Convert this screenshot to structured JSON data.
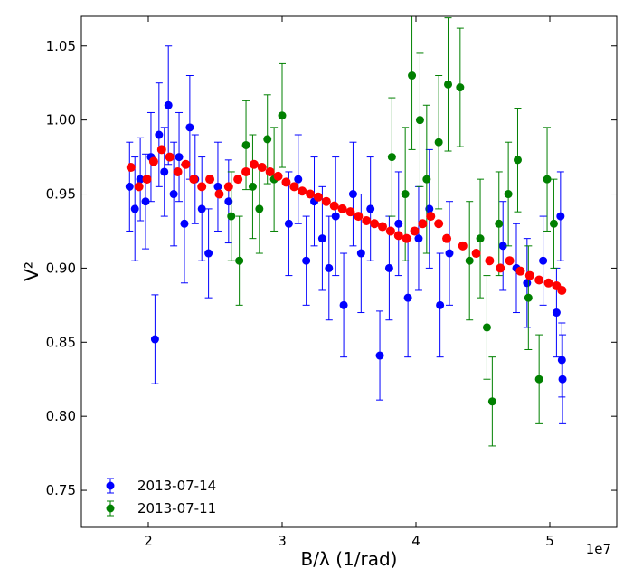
{
  "chart_data": {
    "type": "scatter",
    "title": "",
    "xlabel": "B/λ (1/rad)",
    "ylabel": "V²",
    "x_scale_note": "1e7",
    "xlim": [
      15000000,
      55000000
    ],
    "ylim": [
      0.725,
      1.07
    ],
    "x_ticks": [
      20000000,
      30000000,
      40000000,
      50000000
    ],
    "x_tick_labels": [
      "2",
      "3",
      "4",
      "5"
    ],
    "y_ticks": [
      0.75,
      0.8,
      0.85,
      0.9,
      0.95,
      1.0,
      1.05
    ],
    "y_tick_labels": [
      "0.75",
      "0.80",
      "0.85",
      "0.90",
      "0.95",
      "1.00",
      "1.05"
    ],
    "legend_position": "lower-left",
    "colors": {
      "blue": "#0000ff",
      "green": "#008000",
      "red": "#ff0000"
    },
    "series": [
      {
        "name": "2013-07-14",
        "color": "#0000ff",
        "points": [
          [
            18600000,
            0.955,
            0.03
          ],
          [
            19000000,
            0.94,
            0.035
          ],
          [
            19400000,
            0.96,
            0.028
          ],
          [
            19800000,
            0.945,
            0.032
          ],
          [
            20200000,
            0.975,
            0.03
          ],
          [
            20500000,
            0.852,
            0.03
          ],
          [
            20800000,
            0.99,
            0.035
          ],
          [
            21200000,
            0.965,
            0.03
          ],
          [
            21500000,
            1.01,
            0.04
          ],
          [
            21900000,
            0.95,
            0.035
          ],
          [
            22300000,
            0.975,
            0.03
          ],
          [
            22700000,
            0.93,
            0.04
          ],
          [
            23100000,
            0.995,
            0.035
          ],
          [
            23500000,
            0.96,
            0.03
          ],
          [
            24000000,
            0.94,
            0.035
          ],
          [
            24500000,
            0.91,
            0.03
          ],
          [
            25200000,
            0.955,
            0.03
          ],
          [
            26000000,
            0.945,
            0.028
          ],
          [
            30500000,
            0.93,
            0.035
          ],
          [
            31200000,
            0.96,
            0.03
          ],
          [
            31800000,
            0.905,
            0.03
          ],
          [
            32400000,
            0.945,
            0.03
          ],
          [
            33000000,
            0.92,
            0.035
          ],
          [
            33500000,
            0.9,
            0.035
          ],
          [
            34000000,
            0.935,
            0.04
          ],
          [
            34600000,
            0.875,
            0.035
          ],
          [
            35300000,
            0.95,
            0.035
          ],
          [
            35900000,
            0.91,
            0.04
          ],
          [
            36600000,
            0.94,
            0.035
          ],
          [
            37300000,
            0.841,
            0.03
          ],
          [
            38000000,
            0.9,
            0.035
          ],
          [
            38700000,
            0.93,
            0.035
          ],
          [
            39400000,
            0.88,
            0.04
          ],
          [
            40200000,
            0.92,
            0.035
          ],
          [
            41000000,
            0.94,
            0.04
          ],
          [
            41800000,
            0.875,
            0.035
          ],
          [
            42500000,
            0.91,
            0.035
          ],
          [
            46500000,
            0.915,
            0.03
          ],
          [
            47500000,
            0.9,
            0.03
          ],
          [
            48300000,
            0.89,
            0.03
          ],
          [
            49500000,
            0.905,
            0.03
          ],
          [
            50500000,
            0.87,
            0.03
          ],
          [
            50800000,
            0.935,
            0.03
          ],
          [
            50900000,
            0.838,
            0.025
          ],
          [
            50950000,
            0.825,
            0.03
          ]
        ]
      },
      {
        "name": "2013-07-11",
        "color": "#008000",
        "points": [
          [
            26200000,
            0.935,
            0.03
          ],
          [
            26800000,
            0.905,
            0.03
          ],
          [
            27300000,
            0.983,
            0.03
          ],
          [
            27800000,
            0.955,
            0.035
          ],
          [
            28300000,
            0.94,
            0.03
          ],
          [
            28900000,
            0.987,
            0.03
          ],
          [
            29400000,
            0.96,
            0.035
          ],
          [
            30000000,
            1.003,
            0.035
          ],
          [
            38200000,
            0.975,
            0.04
          ],
          [
            39200000,
            0.95,
            0.045
          ],
          [
            39700000,
            1.03,
            0.05
          ],
          [
            40300000,
            1.0,
            0.045
          ],
          [
            40800000,
            0.96,
            0.05
          ],
          [
            41700000,
            0.985,
            0.045
          ],
          [
            42400000,
            1.024,
            0.045
          ],
          [
            43300000,
            1.022,
            0.04
          ],
          [
            44000000,
            0.905,
            0.04
          ],
          [
            44800000,
            0.92,
            0.04
          ],
          [
            45300000,
            0.86,
            0.035
          ],
          [
            45700000,
            0.81,
            0.03
          ],
          [
            46200000,
            0.93,
            0.035
          ],
          [
            46900000,
            0.95,
            0.035
          ],
          [
            47600000,
            0.973,
            0.035
          ],
          [
            48400000,
            0.88,
            0.035
          ],
          [
            49200000,
            0.825,
            0.03
          ],
          [
            49800000,
            0.96,
            0.035
          ],
          [
            50300000,
            0.93,
            0.03
          ]
        ]
      },
      {
        "name": "",
        "color": "#ff0000",
        "points": [
          [
            18700000,
            0.968
          ],
          [
            19300000,
            0.955
          ],
          [
            19900000,
            0.96
          ],
          [
            20400000,
            0.972
          ],
          [
            21000000,
            0.98
          ],
          [
            21600000,
            0.975
          ],
          [
            22200000,
            0.965
          ],
          [
            22800000,
            0.97
          ],
          [
            23400000,
            0.96
          ],
          [
            24000000,
            0.955
          ],
          [
            24600000,
            0.96
          ],
          [
            25300000,
            0.95
          ],
          [
            26000000,
            0.955
          ],
          [
            26700000,
            0.96
          ],
          [
            27300000,
            0.965
          ],
          [
            27900000,
            0.97
          ],
          [
            28500000,
            0.968
          ],
          [
            29100000,
            0.965
          ],
          [
            29700000,
            0.962
          ],
          [
            30300000,
            0.958
          ],
          [
            30900000,
            0.955
          ],
          [
            31500000,
            0.952
          ],
          [
            32100000,
            0.95
          ],
          [
            32700000,
            0.948
          ],
          [
            33300000,
            0.945
          ],
          [
            33900000,
            0.942
          ],
          [
            34500000,
            0.94
          ],
          [
            35100000,
            0.938
          ],
          [
            35700000,
            0.935
          ],
          [
            36300000,
            0.932
          ],
          [
            36900000,
            0.93
          ],
          [
            37500000,
            0.928
          ],
          [
            38100000,
            0.925
          ],
          [
            38700000,
            0.922
          ],
          [
            39300000,
            0.92
          ],
          [
            39900000,
            0.925
          ],
          [
            40500000,
            0.93
          ],
          [
            41100000,
            0.935
          ],
          [
            41700000,
            0.93
          ],
          [
            42300000,
            0.92
          ],
          [
            43500000,
            0.915
          ],
          [
            44500000,
            0.91
          ],
          [
            45500000,
            0.905
          ],
          [
            46300000,
            0.9
          ],
          [
            47000000,
            0.905
          ],
          [
            47800000,
            0.898
          ],
          [
            48500000,
            0.895
          ],
          [
            49200000,
            0.892
          ],
          [
            49900000,
            0.89
          ],
          [
            50500000,
            0.888
          ],
          [
            50900000,
            0.885
          ]
        ]
      }
    ]
  }
}
